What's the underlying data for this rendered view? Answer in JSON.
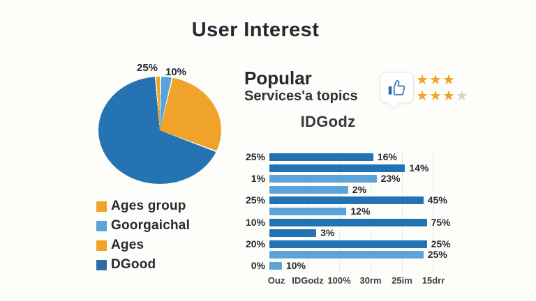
{
  "page": {
    "title": "User Interest"
  },
  "colors": {
    "dark_blue": "#2273b4",
    "light_blue": "#5ba4d9",
    "orange": "#f0a32a",
    "legend_blue": "#2e6ca3",
    "star_orange": "#f0a32a",
    "star_gray": "#d7d3cc",
    "pie_bg_gap": "#fdfdfa"
  },
  "right_panel": {
    "heading_bold": "Popular",
    "heading_sub": "Services'a topics",
    "rating_rows": [
      {
        "filled": 3,
        "empty": 0
      },
      {
        "filled": 3,
        "empty": 1
      }
    ]
  },
  "chart_data": [
    {
      "type": "pie",
      "title": "",
      "start_angle_deg": -4,
      "slices": [
        {
          "name": "Ages",
          "color": "#f0a32a",
          "value_pct": 1.5
        },
        {
          "name": "Goorgaichal",
          "color": "#5ba4d9",
          "value_pct": 3.5
        },
        {
          "name": "Ages group",
          "color": "#f0a32a",
          "value_pct": 27
        },
        {
          "name": "DGood",
          "color": "#2573b3",
          "value_pct": 68
        }
      ],
      "annotations": [
        {
          "text": "25%"
        },
        {
          "text": "10%"
        }
      ],
      "legend": [
        {
          "label": "Ages group",
          "color": "#f0a32a"
        },
        {
          "label": "Goorgaichal",
          "color": "#5ba4d9"
        },
        {
          "label": "Ages",
          "color": "#f0a32a"
        },
        {
          "label": "DGood",
          "color": "#2e6ca3"
        }
      ],
      "legend_position": "bottom-left"
    },
    {
      "type": "bar",
      "orientation": "horizontal",
      "title": "IDGodz",
      "x_tick_labels": [
        "Ouz",
        "IDGodz",
        "100%",
        "30rm",
        "25im",
        "15drr"
      ],
      "y_tick_labels": [
        "25%",
        "1%",
        "25%",
        "10%",
        "20%",
        "0%"
      ],
      "grid": true,
      "bars": [
        {
          "value_label": "16%",
          "length_pct": 62,
          "shade": "dark",
          "row_tick": "25%"
        },
        {
          "value_label": "14%",
          "length_pct": 81,
          "shade": "dark",
          "row_tick": null
        },
        {
          "value_label": "23%",
          "length_pct": 64,
          "shade": "light",
          "row_tick": "1%"
        },
        {
          "value_label": "2%",
          "length_pct": 47,
          "shade": "light",
          "row_tick": null
        },
        {
          "value_label": "45%",
          "length_pct": 92,
          "shade": "dark",
          "row_tick": "25%"
        },
        {
          "value_label": "12%",
          "length_pct": 46,
          "shade": "light",
          "row_tick": null
        },
        {
          "value_label": "75%",
          "length_pct": 94,
          "shade": "dark",
          "row_tick": "10%"
        },
        {
          "value_label": "3%",
          "length_pct": 28,
          "shade": "dark",
          "row_tick": null
        },
        {
          "value_label": "25%",
          "length_pct": 94,
          "shade": "dark",
          "row_tick": "20%"
        },
        {
          "value_label": "25%",
          "length_pct": 92,
          "shade": "light",
          "row_tick": null
        },
        {
          "value_label": "10%",
          "length_pct": 7.5,
          "shade": "light",
          "row_tick": "0%"
        }
      ]
    }
  ]
}
